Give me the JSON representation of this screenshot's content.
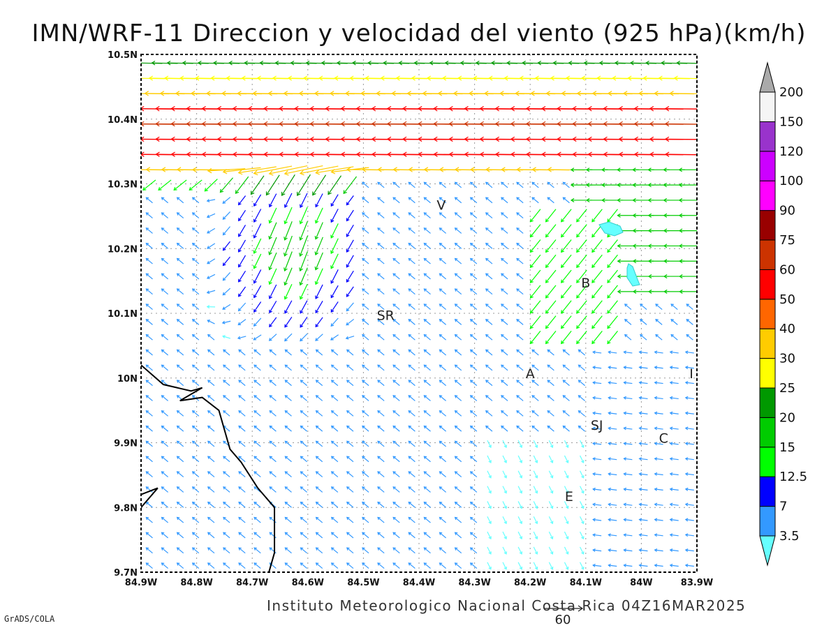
{
  "title": "IMN/WRF-11 Direccion y velocidad del viento (925 hPa)(km/h)",
  "footer": "Instituto Meteorologico Nacional Costa Rica 04Z16MAR2025",
  "credit": "GrADS/COLA",
  "map": {
    "lon_range": [
      -84.9,
      -83.9
    ],
    "lat_range": [
      9.7,
      10.5
    ],
    "lon_ticks": [
      "84.9W",
      "84.8W",
      "84.7W",
      "84.6W",
      "84.5W",
      "84.4W",
      "84.3W",
      "84.2W",
      "84.1W",
      "84W",
      "83.9W"
    ],
    "lat_ticks": [
      "9.7N",
      "9.8N",
      "9.9N",
      "10N",
      "10.1N",
      "10.2N",
      "10.3N",
      "10.4N",
      "10.5N"
    ],
    "grid": true,
    "cities": [
      {
        "label": "V",
        "lon": -84.36,
        "lat": 10.26
      },
      {
        "label": "SR",
        "lon": -84.46,
        "lat": 10.09
      },
      {
        "label": "B",
        "lon": -84.1,
        "lat": 10.14
      },
      {
        "label": "A",
        "lon": -84.2,
        "lat": 10.0
      },
      {
        "label": "I",
        "lon": -83.91,
        "lat": 10.0
      },
      {
        "label": "SJ",
        "lon": -84.08,
        "lat": 9.92
      },
      {
        "label": "C",
        "lon": -83.96,
        "lat": 9.9
      },
      {
        "label": "E",
        "lon": -84.13,
        "lat": 9.81
      }
    ],
    "reference_vector": {
      "label": "60",
      "speed_kmh": 60
    },
    "coastline": [
      [
        -84.9,
        10.02
      ],
      [
        -84.86,
        9.99
      ],
      [
        -84.81,
        9.98
      ],
      [
        -84.79,
        9.985
      ],
      [
        -84.83,
        9.965
      ],
      [
        -84.79,
        9.97
      ],
      [
        -84.76,
        9.95
      ],
      [
        -84.74,
        9.89
      ],
      [
        -84.72,
        9.87
      ],
      [
        -84.69,
        9.83
      ],
      [
        -84.66,
        9.8
      ],
      [
        -84.66,
        9.73
      ],
      [
        -84.67,
        9.7
      ]
    ],
    "peninsula": [
      [
        -84.9,
        9.8
      ],
      [
        -84.87,
        9.83
      ],
      [
        -84.9,
        9.82
      ]
    ]
  },
  "colorbar": {
    "levels": [
      "3.5",
      "7",
      "12.5",
      "15",
      "20",
      "25",
      "30",
      "40",
      "50",
      "60",
      "75",
      "90",
      "100",
      "120",
      "150",
      "200"
    ],
    "colors": [
      "#66ffff",
      "#3399ff",
      "#0000ff",
      "#00ff00",
      "#00cc00",
      "#009900",
      "#ffff00",
      "#ffcc00",
      "#ff6600",
      "#ff0000",
      "#cc3300",
      "#990000",
      "#ff00ff",
      "#cc00ff",
      "#9933cc",
      "#f5f5f5",
      "#aaaaaa"
    ],
    "bounds": [
      0,
      3.5,
      7,
      12.5,
      15,
      20,
      25,
      30,
      40,
      50,
      60,
      75,
      90,
      100,
      120,
      150,
      200
    ]
  }
}
